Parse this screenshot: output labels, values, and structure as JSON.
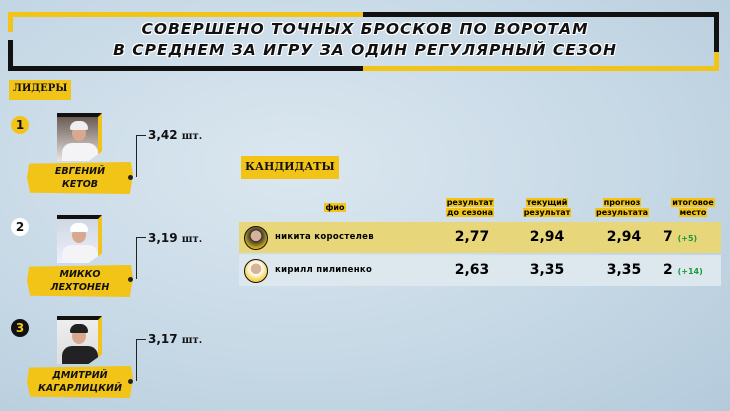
{
  "title": {
    "line1": "Совершено точных бросков по воротам",
    "line2": "в среднем за игру за один регулярный сезон"
  },
  "leaders": {
    "label": "Лидеры",
    "items": [
      {
        "rank": "1",
        "first": "Евгений",
        "last": "Кетов",
        "value": "3,42",
        "unit": "шт."
      },
      {
        "rank": "2",
        "first": "Микко",
        "last": "Лехтонен",
        "value": "3,19",
        "unit": "шт."
      },
      {
        "rank": "3",
        "first": "Дмитрий",
        "last": "Кагарлицкий",
        "value": "3,17",
        "unit": "шт."
      }
    ]
  },
  "candidates": {
    "label": "Кандидаты",
    "headers": {
      "name": "ФИО",
      "before": [
        "результат",
        "до сезона"
      ],
      "current": [
        "текущий",
        "результат"
      ],
      "forecast": [
        "прогноз",
        "результата"
      ],
      "place": [
        "итоговое",
        "место"
      ]
    },
    "rows": [
      {
        "name": "Никита Коростелев",
        "before": "2,77",
        "current": "2,94",
        "forecast": "2,94",
        "place": "7",
        "delta": "(+5)"
      },
      {
        "name": "Кирилл Пилипенко",
        "before": "2,63",
        "current": "3,35",
        "forecast": "3,35",
        "place": "2",
        "delta": "(+14)"
      }
    ]
  },
  "colors": {
    "accent": "#f2c418",
    "dark": "#111111",
    "positive": "#1a9a3a",
    "row_highlight": "#e8d77a"
  }
}
